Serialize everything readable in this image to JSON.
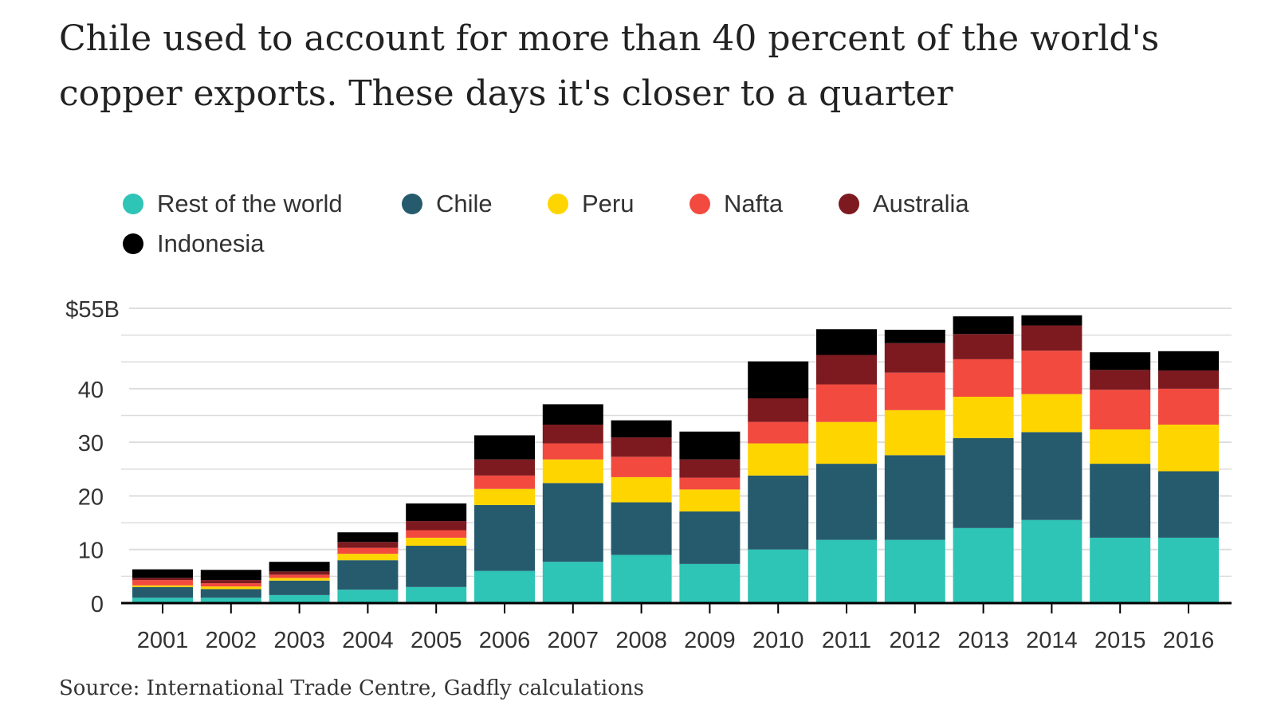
{
  "title": "Chile used to account for more than 40 percent of the world's copper exports. These days it's closer to a quarter",
  "source": "Source: International Trade Centre, Gadfly calculations",
  "legend": [
    {
      "label": "Rest of the world",
      "color": "#2ec4b6"
    },
    {
      "label": "Chile",
      "color": "#265b6e"
    },
    {
      "label": "Peru",
      "color": "#ffd500"
    },
    {
      "label": "Nafta",
      "color": "#f24a3f"
    },
    {
      "label": "Australia",
      "color": "#7d1a20"
    },
    {
      "label": "Indonesia",
      "color": "#000000"
    }
  ],
  "chart_data": {
    "type": "bar",
    "stacked": true,
    "title": "Chile used to account for more than 40 percent of the world's copper exports. These days it's closer to a quarter",
    "xlabel": "",
    "ylabel": "",
    "ylim": [
      0,
      55
    ],
    "yticks": [
      0,
      10,
      20,
      30,
      40,
      55
    ],
    "ytick_labels": [
      "0",
      "10",
      "20",
      "30",
      "40",
      "$55B"
    ],
    "grid": true,
    "legend_position": "top-left",
    "categories": [
      "2001",
      "2002",
      "2003",
      "2004",
      "2005",
      "2006",
      "2007",
      "2008",
      "2009",
      "2010",
      "2011",
      "2012",
      "2013",
      "2014",
      "2015",
      "2016"
    ],
    "series": [
      {
        "name": "Rest of the world",
        "color": "#2ec4b6",
        "values": [
          1.0,
          1.0,
          1.5,
          2.5,
          3.0,
          6.0,
          7.7,
          9.0,
          7.3,
          10.0,
          11.8,
          11.8,
          14.0,
          15.5,
          12.2,
          12.2
        ]
      },
      {
        "name": "Chile",
        "color": "#265b6e",
        "values": [
          2.0,
          1.6,
          2.7,
          5.5,
          7.7,
          12.3,
          14.7,
          9.8,
          9.8,
          13.8,
          14.2,
          15.8,
          16.8,
          16.4,
          13.8,
          12.4
        ]
      },
      {
        "name": "Peru",
        "color": "#ffd500",
        "values": [
          0.3,
          0.5,
          0.5,
          1.2,
          1.5,
          3.0,
          4.4,
          4.7,
          4.1,
          6.0,
          7.8,
          8.4,
          7.7,
          7.1,
          6.4,
          8.7
        ]
      },
      {
        "name": "Nafta",
        "color": "#f24a3f",
        "values": [
          1.0,
          0.6,
          0.6,
          1.1,
          1.4,
          2.5,
          3.0,
          3.8,
          2.2,
          4.0,
          7.0,
          7.0,
          7.0,
          8.1,
          7.4,
          6.7
        ]
      },
      {
        "name": "Australia",
        "color": "#7d1a20",
        "values": [
          0.4,
          0.6,
          0.6,
          1.1,
          1.7,
          3.0,
          3.5,
          3.6,
          3.4,
          4.4,
          5.5,
          5.5,
          4.7,
          4.7,
          3.7,
          3.4
        ]
      },
      {
        "name": "Indonesia",
        "color": "#000000",
        "values": [
          1.6,
          1.9,
          1.8,
          1.8,
          3.3,
          4.5,
          3.8,
          3.2,
          5.2,
          6.9,
          4.8,
          2.5,
          3.3,
          1.9,
          3.3,
          3.6
        ]
      }
    ]
  }
}
